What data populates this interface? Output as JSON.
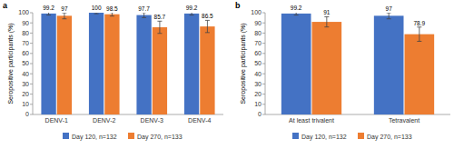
{
  "chart_data": [
    {
      "type": "bar",
      "title": "a",
      "y_label": "Seropositive participants (%)",
      "categories": [
        "DENV-1",
        "DENV-2",
        "DENV-3",
        "DENV-4"
      ],
      "series": [
        {
          "name": "Day 120, n=132",
          "color": "#4472c4",
          "values": [
            99.2,
            100,
            97.7,
            99.2
          ],
          "errors": [
            1.5,
            1.0,
            2.5,
            1.5
          ]
        },
        {
          "name": "Day 270, n=133",
          "color": "#ed7d31",
          "values": [
            97.0,
            98.5,
            85.7,
            86.5
          ],
          "errors": [
            3.0,
            1.8,
            6.0,
            6.0
          ]
        }
      ],
      "ylim": [
        0,
        100
      ],
      "yticks": [
        0,
        10,
        20,
        30,
        40,
        50,
        60,
        70,
        80,
        90,
        100
      ],
      "grid": false,
      "data_labels": true,
      "legend": "bottom"
    },
    {
      "type": "bar",
      "title": "b",
      "y_label": "Seropositive participants (%)",
      "categories": [
        "At least trivalent",
        "Tetravalent"
      ],
      "series": [
        {
          "name": "Day 120, n=132",
          "color": "#4472c4",
          "values": [
            99.2,
            97.0
          ],
          "errors": [
            1.5,
            3.0
          ]
        },
        {
          "name": "Day 270, n=133",
          "color": "#ed7d31",
          "values": [
            91.0,
            78.9
          ],
          "errors": [
            5.0,
            7.0
          ]
        }
      ],
      "ylim": [
        0,
        100
      ],
      "yticks": [
        0,
        10,
        20,
        30,
        40,
        50,
        60,
        70,
        80,
        90,
        100
      ],
      "grid": false,
      "data_labels": true,
      "legend": "bottom"
    }
  ]
}
